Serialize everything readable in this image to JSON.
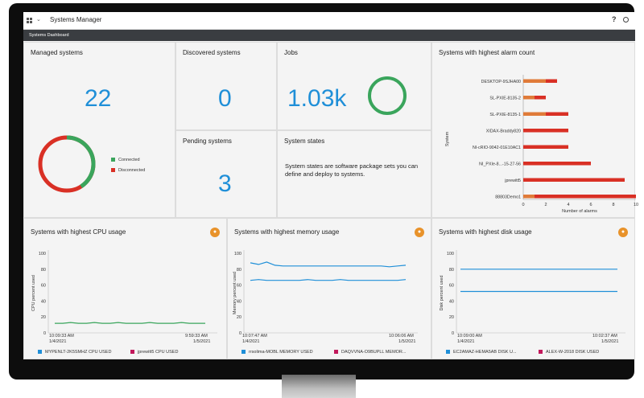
{
  "header": {
    "title": "Systems Manager",
    "help": "?",
    "subtitle": "Systems Dashboard"
  },
  "tiles": {
    "managed": {
      "title": "Managed systems",
      "value": "22",
      "legend": [
        {
          "label": "Connected",
          "color": "#3aa55c"
        },
        {
          "label": "Disconnected",
          "color": "#d93025"
        }
      ]
    },
    "discovered": {
      "title": "Discovered systems",
      "value": "0"
    },
    "jobs": {
      "title": "Jobs",
      "value": "1.03k"
    },
    "pending": {
      "title": "Pending systems",
      "value": "3"
    },
    "states": {
      "title": "System states",
      "description": "System states are software package sets you can define and deploy to systems."
    },
    "alarm": {
      "title": "Systems with highest alarm count"
    },
    "cpu": {
      "title": "Systems with highest CPU usage",
      "ylabel": "CPU percent used",
      "start_time": "10:09:33 AM",
      "start_date": "1/4/2021",
      "end_time": "9:59:33 AM",
      "end_date": "1/5/2021",
      "legend": [
        {
          "label": "MYPENLT-2K5SMHZ CPU USED",
          "color": "#1f8fd8"
        },
        {
          "label": "jprewitt5 CPU USED",
          "color": "#c2185b"
        }
      ]
    },
    "memory": {
      "title": "Systems with highest memory usage",
      "ylabel": "Memory percent used",
      "start_time": "10:07:47 AM",
      "start_date": "1/4/2021",
      "end_time": "10:06:06 AM",
      "end_date": "1/5/2021",
      "legend": [
        {
          "label": "rrsolima-MOBL MEMORY USED",
          "color": "#1f8fd8"
        },
        {
          "label": "DAQVVNA-O9BUPLL MEMOR...",
          "color": "#c2185b"
        }
      ]
    },
    "disk": {
      "title": "Systems with highest disk usage",
      "ylabel": "Disk percent used",
      "start_time": "10:09:00 AM",
      "start_date": "1/4/2021",
      "end_time": "10:02:37 AM",
      "end_date": "1/5/2021",
      "legend": [
        {
          "label": "EC2AMAZ-HEMA5AB DISK U...",
          "color": "#1f8fd8"
        },
        {
          "label": "ALEX-W-2018 DISK USED",
          "color": "#c2185b"
        }
      ]
    }
  },
  "chart_data": [
    {
      "type": "pie",
      "title": "Managed systems",
      "slices": [
        {
          "label": "Connected",
          "value": 9,
          "color": "#3aa55c"
        },
        {
          "label": "Disconnected",
          "value": 13,
          "color": "#d93025"
        }
      ]
    },
    {
      "type": "bar",
      "orientation": "horizontal",
      "title": "Systems with highest alarm count",
      "xlabel": "Number of alarms",
      "ylabel": "System",
      "xlim": [
        0,
        10
      ],
      "xticks": [
        "0",
        "2",
        "4",
        "6",
        "8",
        "10"
      ],
      "categories": [
        "DESKTOP-9SJHA00",
        "SL-PXIE-8135-2",
        "SL-PXIE-8135-1",
        "XIDAX-Braddy820",
        "NI-cRIO-9042-01E10AC1",
        "NI_PXIe-8...-15-27-56",
        "jprewitt5",
        "88803Demo1"
      ],
      "series": [
        {
          "color": "#e07b39",
          "values": [
            2,
            1,
            2,
            0,
            0,
            0,
            0,
            1
          ]
        },
        {
          "color": "#d93025",
          "values": [
            1,
            1,
            2,
            4,
            4,
            6,
            9,
            9
          ]
        }
      ]
    },
    {
      "type": "line",
      "title": "Systems with highest CPU usage",
      "ylabel": "CPU percent used",
      "ylim": [
        0,
        100
      ],
      "yticks": [
        "100",
        "80",
        "60",
        "40",
        "20",
        "0"
      ],
      "series": [
        {
          "name": "MYPENLT-2K5SMHZ CPU USED",
          "color": "#3aa55c",
          "values": [
            12,
            12,
            13,
            12,
            12,
            13,
            12,
            12,
            13,
            12,
            12,
            12,
            13,
            12,
            12,
            12,
            13,
            12,
            12,
            12
          ]
        }
      ]
    },
    {
      "type": "line",
      "title": "Systems with highest memory usage",
      "ylabel": "Memory percent used",
      "ylim": [
        0,
        100
      ],
      "yticks": [
        "100",
        "80",
        "60",
        "40",
        "20",
        "0"
      ],
      "series": [
        {
          "name": "rrsolima-MOBL MEMORY USED",
          "color": "#1f8fd8",
          "values": [
            88,
            86,
            89,
            85,
            84,
            84,
            84,
            84,
            84,
            84,
            84,
            84,
            84,
            84,
            84,
            84,
            84,
            83,
            84,
            85
          ]
        },
        {
          "name": "DAQVVNA-O9BUPLL MEMOR...",
          "color": "#1f8fd8",
          "values": [
            66,
            67,
            66,
            66,
            66,
            66,
            66,
            67,
            66,
            66,
            66,
            67,
            66,
            66,
            66,
            66,
            66,
            66,
            66,
            67
          ]
        }
      ]
    },
    {
      "type": "line",
      "title": "Systems with highest disk usage",
      "ylabel": "Disk percent used",
      "ylim": [
        0,
        100
      ],
      "yticks": [
        "100",
        "80",
        "60",
        "40",
        "20",
        "0"
      ],
      "series": [
        {
          "name": "EC2AMAZ-HEMA5AB DISK U...",
          "color": "#1f8fd8",
          "values": [
            80,
            80,
            80,
            80,
            80
          ]
        },
        {
          "name": "ALEX-W-2018 DISK USED",
          "color": "#1f8fd8",
          "values": [
            52,
            52,
            52,
            52,
            52
          ]
        }
      ]
    }
  ]
}
